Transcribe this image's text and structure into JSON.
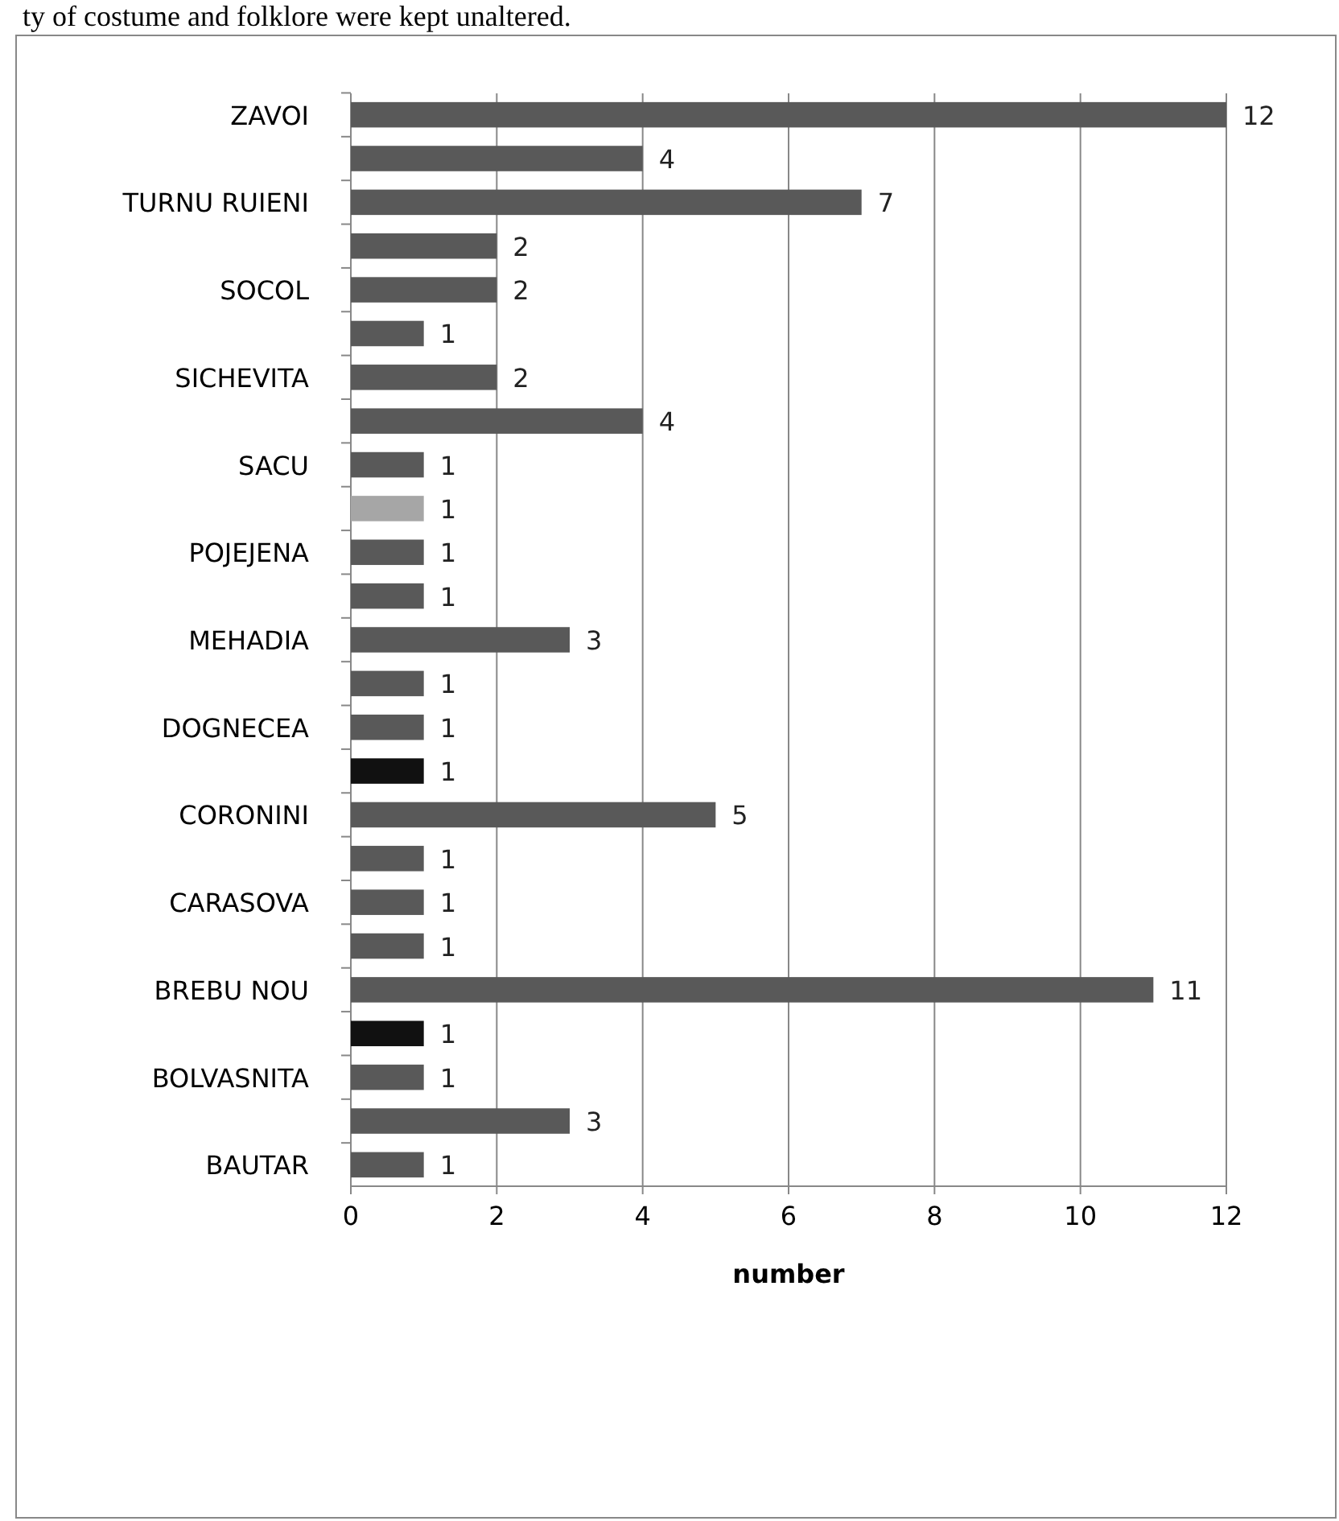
{
  "chart_data": {
    "type": "bar",
    "orientation": "horizontal",
    "annotations": [
      "ty of costume and folklore were kept unaltered."
    ],
    "xlabel": "number",
    "categories": [
      "ZAVOI",
      null,
      "TURNU RUIENI",
      null,
      "SOCOL",
      null,
      "SICHEVITA",
      null,
      "SACU",
      null,
      "POJEJENA",
      null,
      "MEHADIA",
      null,
      "DOGNECEA",
      null,
      "CORONINI",
      null,
      "CARASOVA",
      null,
      "BREBU NOU",
      null,
      "BOLVASNITA",
      null,
      "BAUTAR"
    ],
    "values": [
      12,
      4,
      7,
      2,
      2,
      1,
      2,
      4,
      1,
      1,
      1,
      1,
      3,
      1,
      1,
      1,
      5,
      1,
      1,
      1,
      11,
      1,
      1,
      3,
      1
    ],
    "colors": [
      "#595959",
      "#595959",
      "#595959",
      "#595959",
      "#595959",
      "#595959",
      "#595959",
      "#595959",
      "#595959",
      "#a6a6a6",
      "#595959",
      "#595959",
      "#595959",
      "#595959",
      "#595959",
      "#111111",
      "#595959",
      "#595959",
      "#595959",
      "#595959",
      "#595959",
      "#111111",
      "#595959",
      "#595959",
      "#595959"
    ],
    "xlim": [
      0,
      12
    ],
    "xticks": [
      0,
      2,
      4,
      6,
      8,
      10,
      12
    ],
    "grid": "x",
    "data_labels": true
  }
}
